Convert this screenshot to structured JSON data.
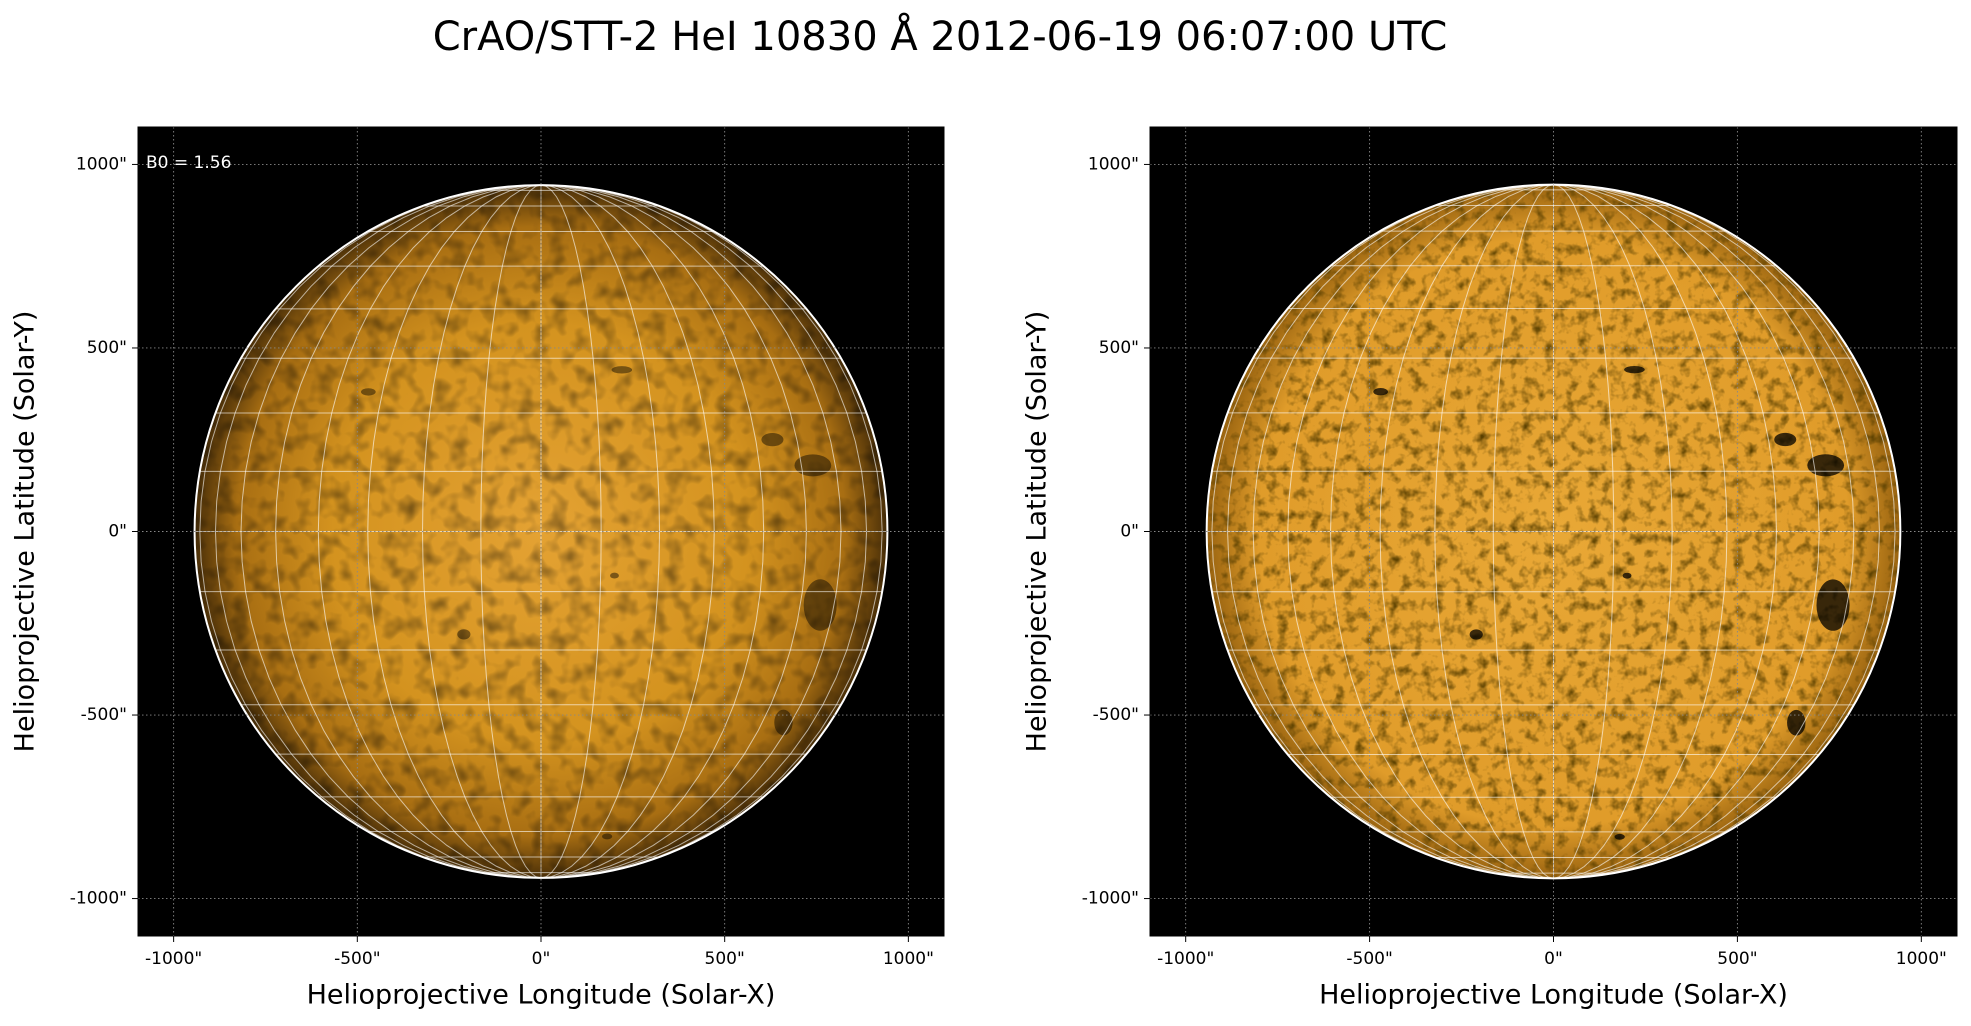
{
  "title": "CrAO/STT-2 HeI 10830 Å 2012-06-19 06:07:00 UTC",
  "chart_data": [
    {
      "type": "image",
      "xlabel": "Helioprojective Longitude (Solar-X)",
      "ylabel": "Helioprojective Latitude (Solar-Y)",
      "annotation": "B0 = 1.56",
      "solar_radius": 943,
      "style": "plain",
      "xlim": [
        -1097,
        1097
      ],
      "ylim": [
        -1102,
        1102
      ],
      "grid": true,
      "xticks": [
        {
          "value": -1000,
          "label": "-1000\""
        },
        {
          "value": -500,
          "label": "-500\""
        },
        {
          "value": 0,
          "label": "0\""
        },
        {
          "value": 500,
          "label": "500\""
        },
        {
          "value": 1000,
          "label": "1000\""
        }
      ],
      "yticks": [
        {
          "value": -1000,
          "label": "-1000\""
        },
        {
          "value": -500,
          "label": "-500\""
        },
        {
          "value": 0,
          "label": "0\""
        },
        {
          "value": 500,
          "label": "500\""
        },
        {
          "value": 1000,
          "label": "1000\""
        }
      ]
    },
    {
      "type": "image",
      "xlabel": "Helioprojective Longitude (Solar-X)",
      "ylabel": "Helioprojective Latitude (Solar-Y)",
      "solar_radius": 943,
      "style": "enhanced",
      "xlim": [
        -1097,
        1097
      ],
      "ylim": [
        -1102,
        1102
      ],
      "grid": true,
      "xticks": [
        {
          "value": -1000,
          "label": "-1000\""
        },
        {
          "value": -500,
          "label": "-500\""
        },
        {
          "value": 0,
          "label": "0\""
        },
        {
          "value": 500,
          "label": "500\""
        },
        {
          "value": 1000,
          "label": "1000\""
        }
      ],
      "yticks": [
        {
          "value": -1000,
          "label": "-1000\""
        },
        {
          "value": -500,
          "label": "-500\""
        },
        {
          "value": 0,
          "label": "0\""
        },
        {
          "value": 500,
          "label": "500\""
        },
        {
          "value": 1000,
          "label": "1000\""
        }
      ]
    }
  ]
}
